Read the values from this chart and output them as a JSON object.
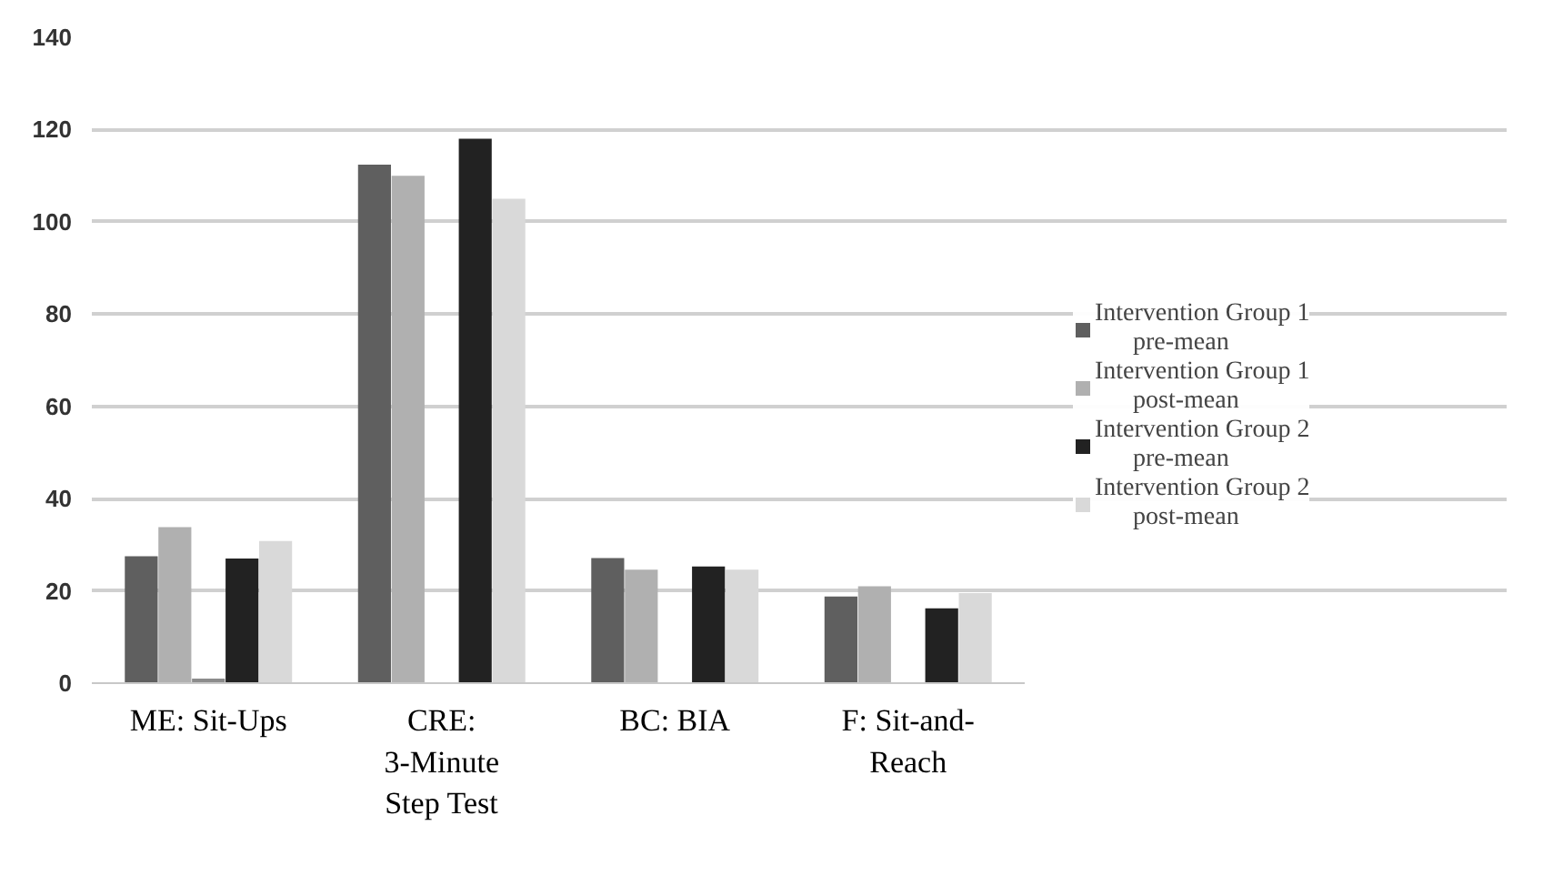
{
  "chart_data": {
    "type": "bar",
    "categories": [
      "ME: Sit-Ups",
      "CRE: 3-Minute Step Test",
      "BC: BIA",
      "F: Sit-and-Reach"
    ],
    "series": [
      {
        "name": "Intervention Group 1 pre-mean",
        "color": "#5f5f5f",
        "values": [
          27.5,
          112.4,
          27.1,
          18.8
        ]
      },
      {
        "name": "Intervention Group 1 post-mean",
        "color": "#b0b0b0",
        "values": [
          33.8,
          110,
          24.6,
          21
        ]
      },
      {
        "color": "#8c8c8c",
        "values": [
          1,
          null,
          null,
          null
        ]
      },
      {
        "name": "Intervention Group 2 pre-mean",
        "color": "#222222",
        "values": [
          27,
          118,
          25.3,
          16.2
        ]
      },
      {
        "name": "Intervention Group 2 post-mean",
        "color": "#d9d9d9",
        "values": [
          30.8,
          105,
          24.6,
          19.5
        ]
      }
    ],
    "ylim": [
      0,
      140
    ],
    "yticks": [
      0,
      20,
      40,
      60,
      80,
      100,
      120,
      140
    ],
    "grid": "y",
    "legend": "right"
  }
}
